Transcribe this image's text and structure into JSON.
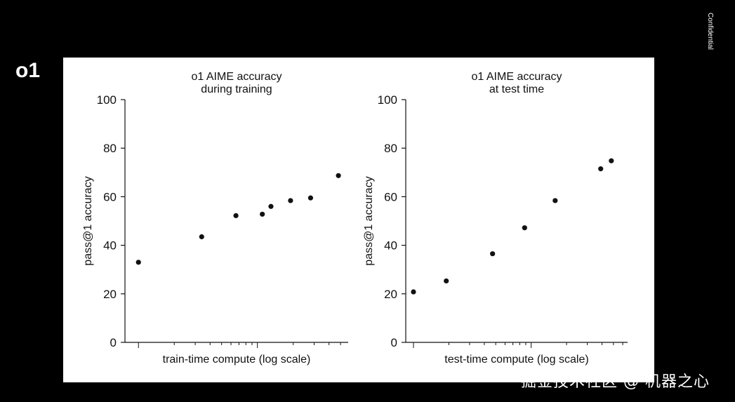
{
  "slide": {
    "label": "o1",
    "confidential": "Confidential",
    "watermark": "掘金技术社区 @ 机器之心"
  },
  "colors": {
    "background": "#000000",
    "panel": "#ffffff",
    "ink": "#111111"
  },
  "chart_data": [
    {
      "type": "scatter",
      "title": [
        "o1 AIME accuracy",
        "during training"
      ],
      "xlabel": "train-time compute (log scale)",
      "ylabel": "pass@1 accuracy",
      "x_scale": "log",
      "x_tick_labels": "none",
      "ylim": [
        0,
        100
      ],
      "yticks": [
        "0",
        "20",
        "40",
        "60",
        "80",
        "100"
      ],
      "grid": false,
      "points": [
        {
          "x": 1.0,
          "y": 33
        },
        {
          "x": 3.4,
          "y": 43.5
        },
        {
          "x": 6.6,
          "y": 52.2
        },
        {
          "x": 11.0,
          "y": 52.8
        },
        {
          "x": 13.0,
          "y": 56.0
        },
        {
          "x": 19.0,
          "y": 58.4
        },
        {
          "x": 28.0,
          "y": 59.5
        },
        {
          "x": 48.0,
          "y": 68.7
        }
      ]
    },
    {
      "type": "scatter",
      "title": [
        "o1 AIME accuracy",
        "at test time"
      ],
      "xlabel": "test-time compute (log scale)",
      "ylabel": "pass@1 accuracy",
      "x_scale": "log",
      "x_tick_labels": "none",
      "ylim": [
        0,
        100
      ],
      "yticks": [
        "0",
        "20",
        "40",
        "60",
        "80",
        "100"
      ],
      "grid": false,
      "points": [
        {
          "x": 1.0,
          "y": 20.8
        },
        {
          "x": 1.9,
          "y": 25.3
        },
        {
          "x": 4.7,
          "y": 36.5
        },
        {
          "x": 8.8,
          "y": 47.2
        },
        {
          "x": 16.0,
          "y": 58.4
        },
        {
          "x": 39.0,
          "y": 71.5
        },
        {
          "x": 48.0,
          "y": 74.8
        }
      ]
    }
  ]
}
